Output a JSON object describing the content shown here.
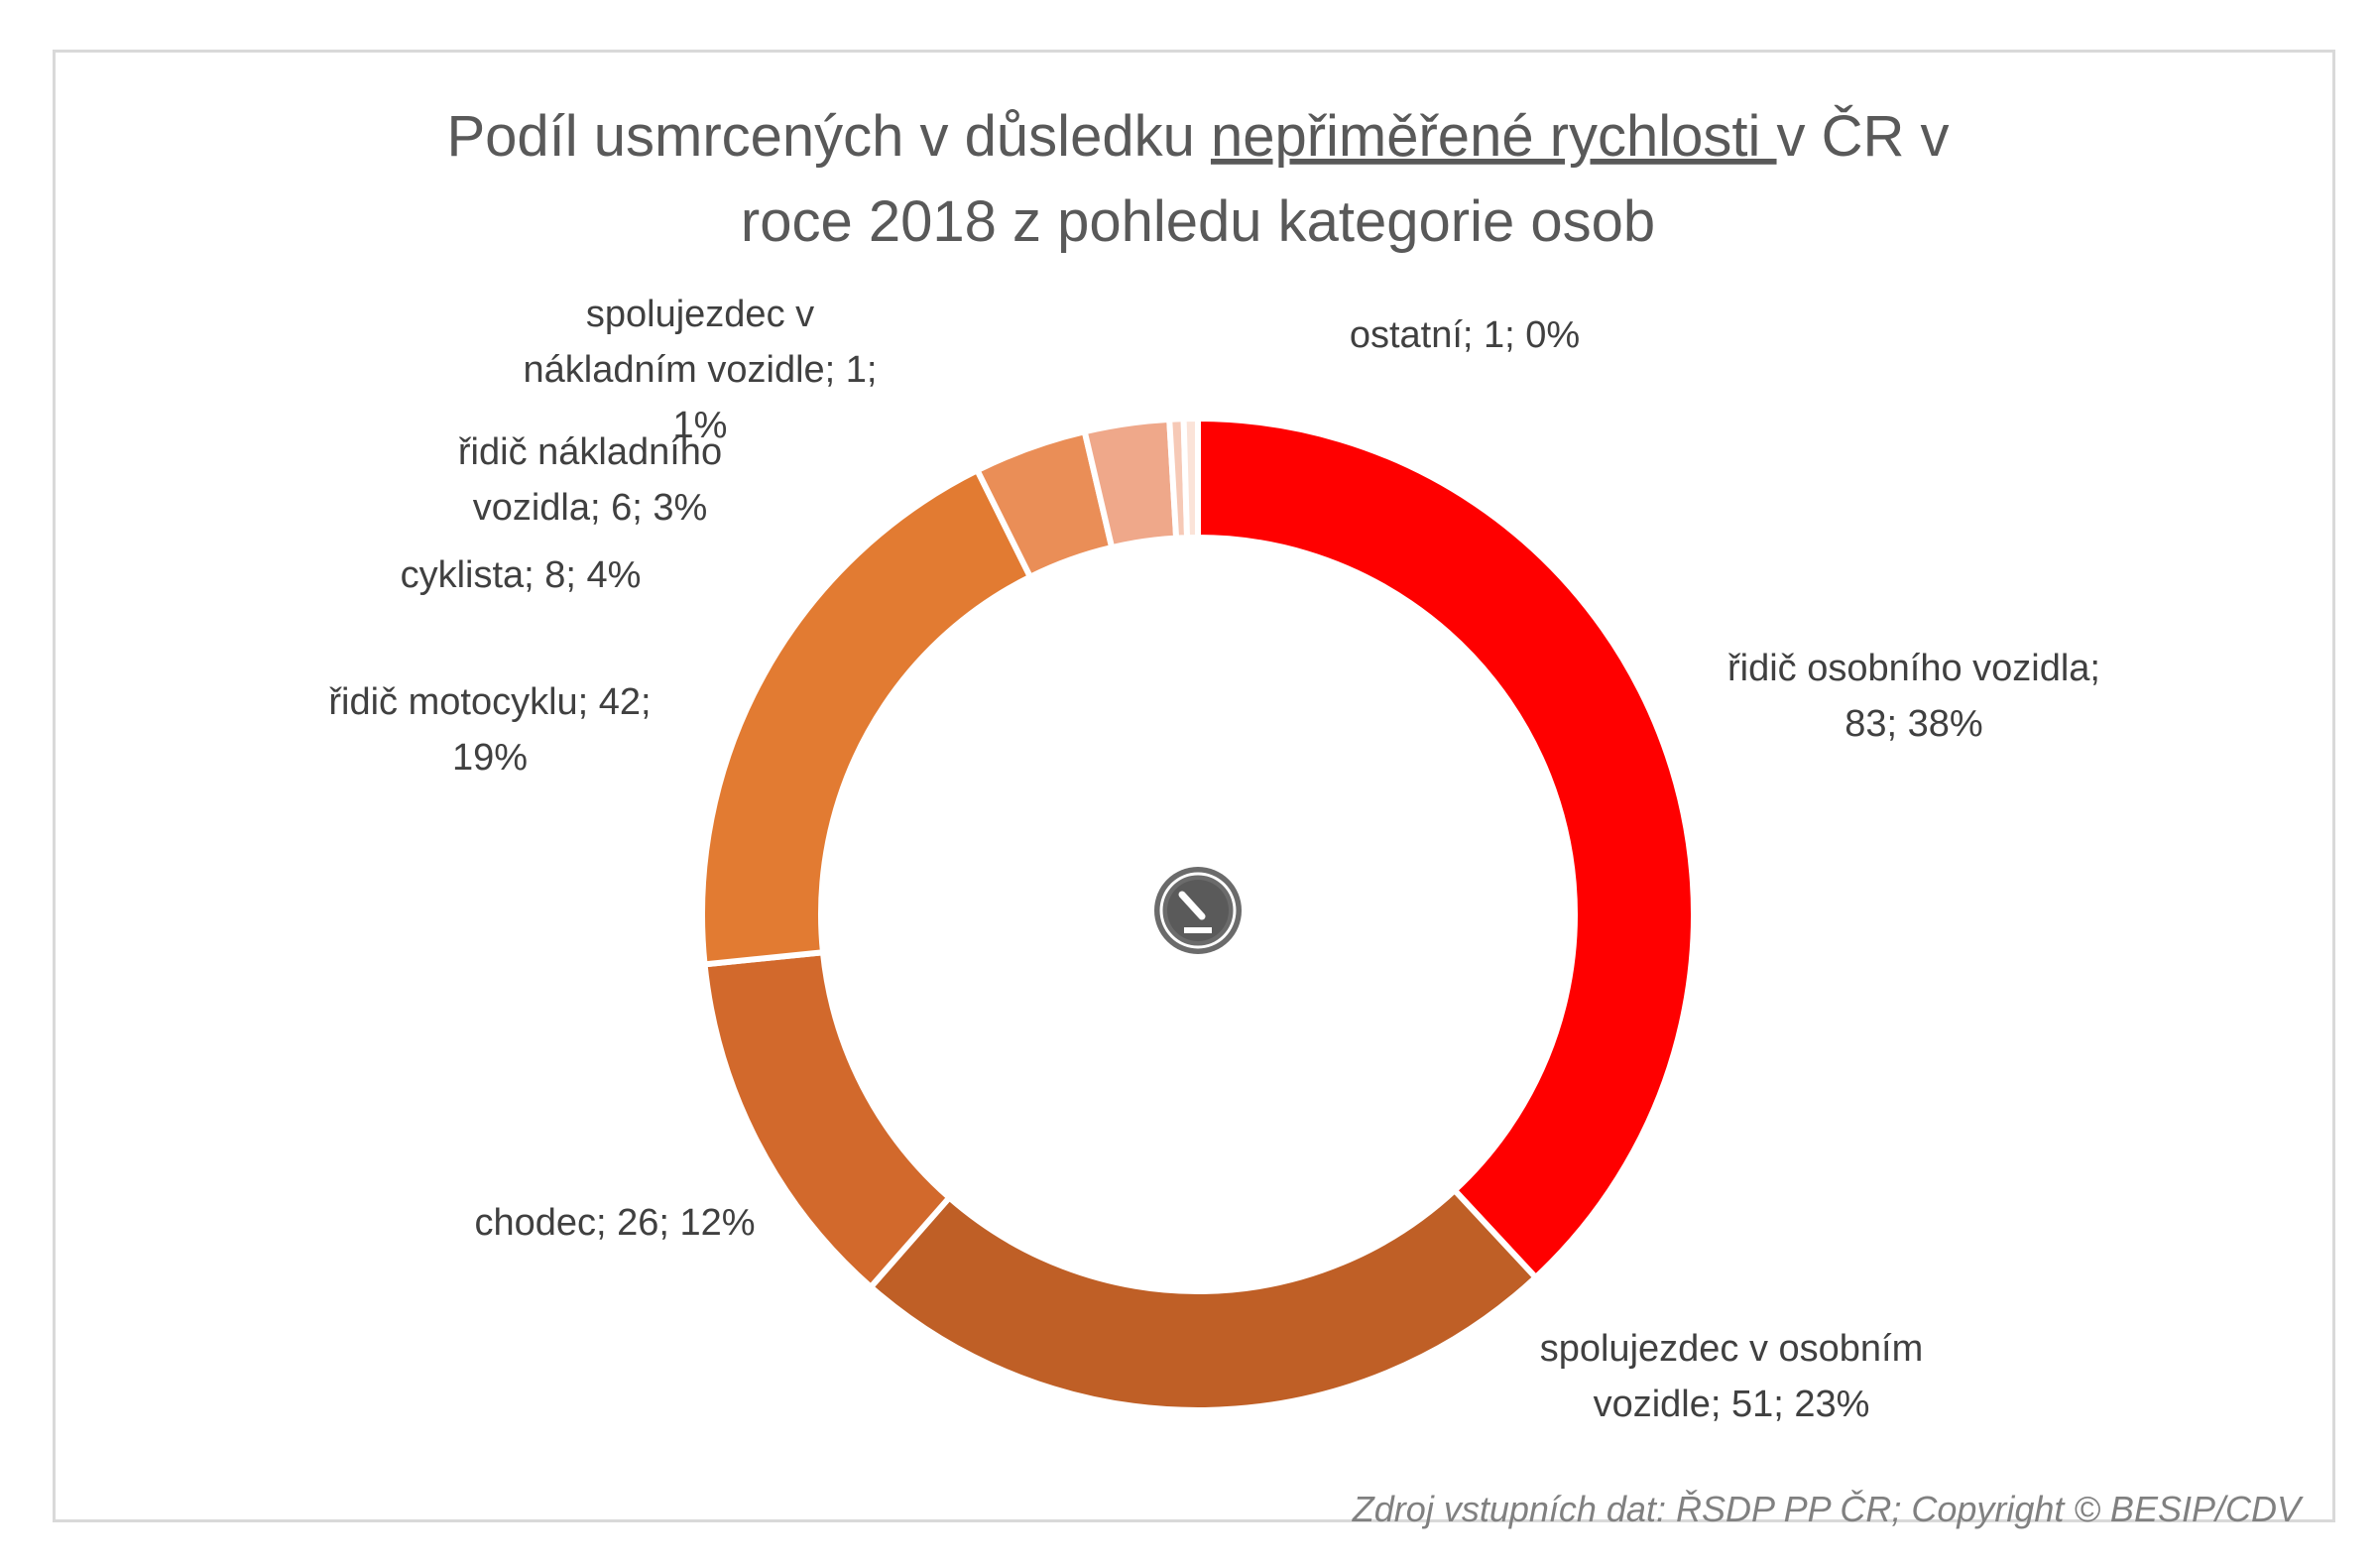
{
  "chart_data": {
    "type": "pie",
    "variant": "donut",
    "title": {
      "line1_before": "Podíl usmrcených v důsledku ",
      "line1_underlined": "nepřiměřené rychlosti ",
      "line1_after": "v ČR v",
      "line2": "roce 2018 z pohledu kategorie osob"
    },
    "slices": [
      {
        "name": "řidič osobního vozidla",
        "value": 83,
        "percent": 38,
        "color": "#ff0000",
        "label_lines": [
          "řidič osobního vozidla;",
          "83; 38%"
        ]
      },
      {
        "name": "spolujezdec v osobním vozidle",
        "value": 51,
        "percent": 23,
        "color": "#bf5f26",
        "label_lines": [
          "spolujezdec v osobním",
          "vozidle; 51; 23%"
        ]
      },
      {
        "name": "chodec",
        "value": 26,
        "percent": 12,
        "color": "#d2692c",
        "label_lines": [
          "chodec; 26; 12%"
        ]
      },
      {
        "name": "řidič motocyklu",
        "value": 42,
        "percent": 19,
        "color": "#e27b32",
        "label_lines": [
          "řidič motocyklu; 42;",
          "19%"
        ]
      },
      {
        "name": "cyklista",
        "value": 8,
        "percent": 4,
        "color": "#ea8e57",
        "label_lines": [
          "cyklista; 8; 4%"
        ]
      },
      {
        "name": "řidič nákladního vozidla",
        "value": 6,
        "percent": 3,
        "color": "#efa88a",
        "label_lines": [
          "řidič nákladního",
          "vozidla; 6; 3%"
        ]
      },
      {
        "name": "spolujezdec v nákladním vozidle",
        "value": 1,
        "percent": 1,
        "color": "#f6c9b6",
        "label_lines": [
          "spolujezdec v",
          "nákladním vozidle; 1;",
          "1%"
        ]
      },
      {
        "name": "ostatní",
        "value": 1,
        "percent": 0,
        "color": "#fbe3d8",
        "label_lines": [
          "ostatní; 1; 0%"
        ]
      }
    ],
    "legend": "none",
    "center_icon": "speedometer-icon"
  },
  "source_note": "Zdroj vstupních dat: ŘSDP PP ČR; Copyright © BESIP/CDV"
}
